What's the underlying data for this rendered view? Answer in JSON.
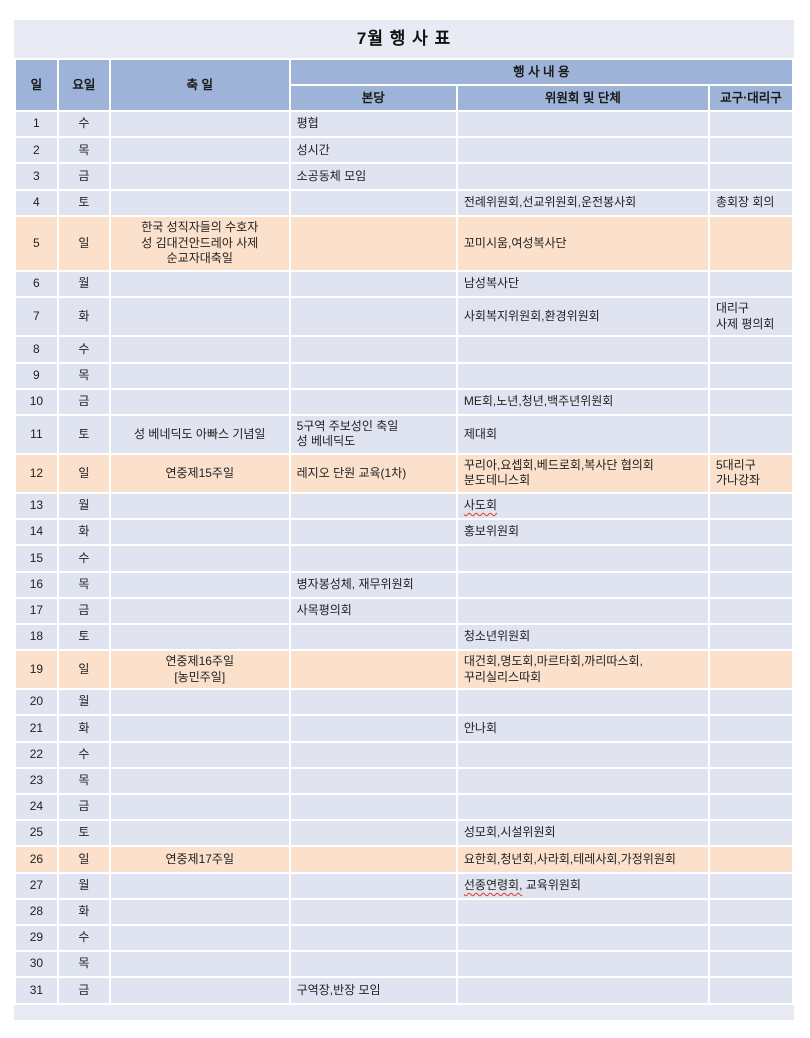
{
  "title": "7월 행 사 표",
  "colors": {
    "header_bg": "#9db3d8",
    "row_bg": "#dfe4f0",
    "sunday_bg": "#fbe0cb",
    "band_bg": "#e8ebf3",
    "grid": "#ffffff",
    "text": "#1f1f1f",
    "misspell_underline": "#d93b2a"
  },
  "table": {
    "headers": {
      "day": "일",
      "weekday": "요일",
      "feast": "축 일",
      "events_group": "행 사 내 용",
      "parish": "본당",
      "committee": "위원회 및 단체",
      "diocese": "교구·대리구"
    },
    "rows": [
      {
        "day": "1",
        "weekday": "수",
        "feast": "",
        "parish": "평협",
        "committee": "",
        "diocese": "",
        "sunday": false
      },
      {
        "day": "2",
        "weekday": "목",
        "feast": "",
        "parish": "성시간",
        "committee": "",
        "diocese": "",
        "sunday": false
      },
      {
        "day": "3",
        "weekday": "금",
        "feast": "",
        "parish": "소공동체 모임",
        "committee": "",
        "diocese": "",
        "sunday": false
      },
      {
        "day": "4",
        "weekday": "토",
        "feast": "",
        "parish": "",
        "committee": "전례위원회,선교위원회,운전봉사회",
        "diocese": "총회장 회의",
        "sunday": false
      },
      {
        "day": "5",
        "weekday": "일",
        "feast": "한국 성직자들의 수호자\n성 김대건안드레아 사제\n순교자대축일",
        "parish": "",
        "committee": "꼬미시움,여성복사단",
        "diocese": "",
        "sunday": true
      },
      {
        "day": "6",
        "weekday": "월",
        "feast": "",
        "parish": "",
        "committee": "남성복사단",
        "diocese": "",
        "sunday": false
      },
      {
        "day": "7",
        "weekday": "화",
        "feast": "",
        "parish": "",
        "committee": "사회복지위원회,환경위원회",
        "diocese": "대리구\n사제 평의회",
        "sunday": false
      },
      {
        "day": "8",
        "weekday": "수",
        "feast": "",
        "parish": "",
        "committee": "",
        "diocese": "",
        "sunday": false
      },
      {
        "day": "9",
        "weekday": "목",
        "feast": "",
        "parish": "",
        "committee": "",
        "diocese": "",
        "sunday": false
      },
      {
        "day": "10",
        "weekday": "금",
        "feast": "",
        "parish": "",
        "committee": "ME회,노년,청년,백주년위원회",
        "diocese": "",
        "sunday": false
      },
      {
        "day": "11",
        "weekday": "토",
        "feast": "성 베네딕도 아빠스 기념일",
        "parish": "5구역 주보성인 축일\n성 베네딕도",
        "committee": "제대회",
        "diocese": "",
        "sunday": false
      },
      {
        "day": "12",
        "weekday": "일",
        "feast": "연중제15주일",
        "parish": "레지오 단원 교육(1차)",
        "committee": "꾸리아,요셉회,베드로회,복사단 협의회\n분도테니스회",
        "diocese": "5대리구\n가나강좌",
        "sunday": true
      },
      {
        "day": "13",
        "weekday": "월",
        "feast": "",
        "parish": "",
        "committee": "사도회",
        "diocese": "",
        "sunday": false,
        "misspell": "사도회"
      },
      {
        "day": "14",
        "weekday": "화",
        "feast": "",
        "parish": "",
        "committee": "홍보위원회",
        "diocese": "",
        "sunday": false
      },
      {
        "day": "15",
        "weekday": "수",
        "feast": "",
        "parish": "",
        "committee": "",
        "diocese": "",
        "sunday": false
      },
      {
        "day": "16",
        "weekday": "목",
        "feast": "",
        "parish": "병자봉성체, 재무위원회",
        "committee": "",
        "diocese": "",
        "sunday": false
      },
      {
        "day": "17",
        "weekday": "금",
        "feast": "",
        "parish": "사목평의회",
        "committee": "",
        "diocese": "",
        "sunday": false
      },
      {
        "day": "18",
        "weekday": "토",
        "feast": "",
        "parish": "",
        "committee": "청소년위원회",
        "diocese": "",
        "sunday": false
      },
      {
        "day": "19",
        "weekday": "일",
        "feast": "연중제16주일\n[농민주일]",
        "parish": "",
        "committee": "대건회,명도회,마르타회,까리따스회,\n꾸리실리스따회",
        "diocese": "",
        "sunday": true
      },
      {
        "day": "20",
        "weekday": "월",
        "feast": "",
        "parish": "",
        "committee": "",
        "diocese": "",
        "sunday": false
      },
      {
        "day": "21",
        "weekday": "화",
        "feast": "",
        "parish": "",
        "committee": "안나회",
        "diocese": "",
        "sunday": false
      },
      {
        "day": "22",
        "weekday": "수",
        "feast": "",
        "parish": "",
        "committee": "",
        "diocese": "",
        "sunday": false
      },
      {
        "day": "23",
        "weekday": "목",
        "feast": "",
        "parish": "",
        "committee": "",
        "diocese": "",
        "sunday": false
      },
      {
        "day": "24",
        "weekday": "금",
        "feast": "",
        "parish": "",
        "committee": "",
        "diocese": "",
        "sunday": false
      },
      {
        "day": "25",
        "weekday": "토",
        "feast": "",
        "parish": "",
        "committee": "성모회,시설위원회",
        "diocese": "",
        "sunday": false
      },
      {
        "day": "26",
        "weekday": "일",
        "feast": "연중제17주일",
        "parish": "",
        "committee": "요한회,청년회,사라회,테레사회,가정위원회",
        "diocese": "",
        "sunday": true
      },
      {
        "day": "27",
        "weekday": "월",
        "feast": "",
        "parish": "",
        "committee": "선종연령회, 교육위원회",
        "diocese": "",
        "sunday": false,
        "misspell": "선종연령회,"
      },
      {
        "day": "28",
        "weekday": "화",
        "feast": "",
        "parish": "",
        "committee": "",
        "diocese": "",
        "sunday": false
      },
      {
        "day": "29",
        "weekday": "수",
        "feast": "",
        "parish": "",
        "committee": "",
        "diocese": "",
        "sunday": false
      },
      {
        "day": "30",
        "weekday": "목",
        "feast": "",
        "parish": "",
        "committee": "",
        "diocese": "",
        "sunday": false
      },
      {
        "day": "31",
        "weekday": "금",
        "feast": "",
        "parish": "구역장,반장 모임",
        "committee": "",
        "diocese": "",
        "sunday": false
      }
    ]
  }
}
